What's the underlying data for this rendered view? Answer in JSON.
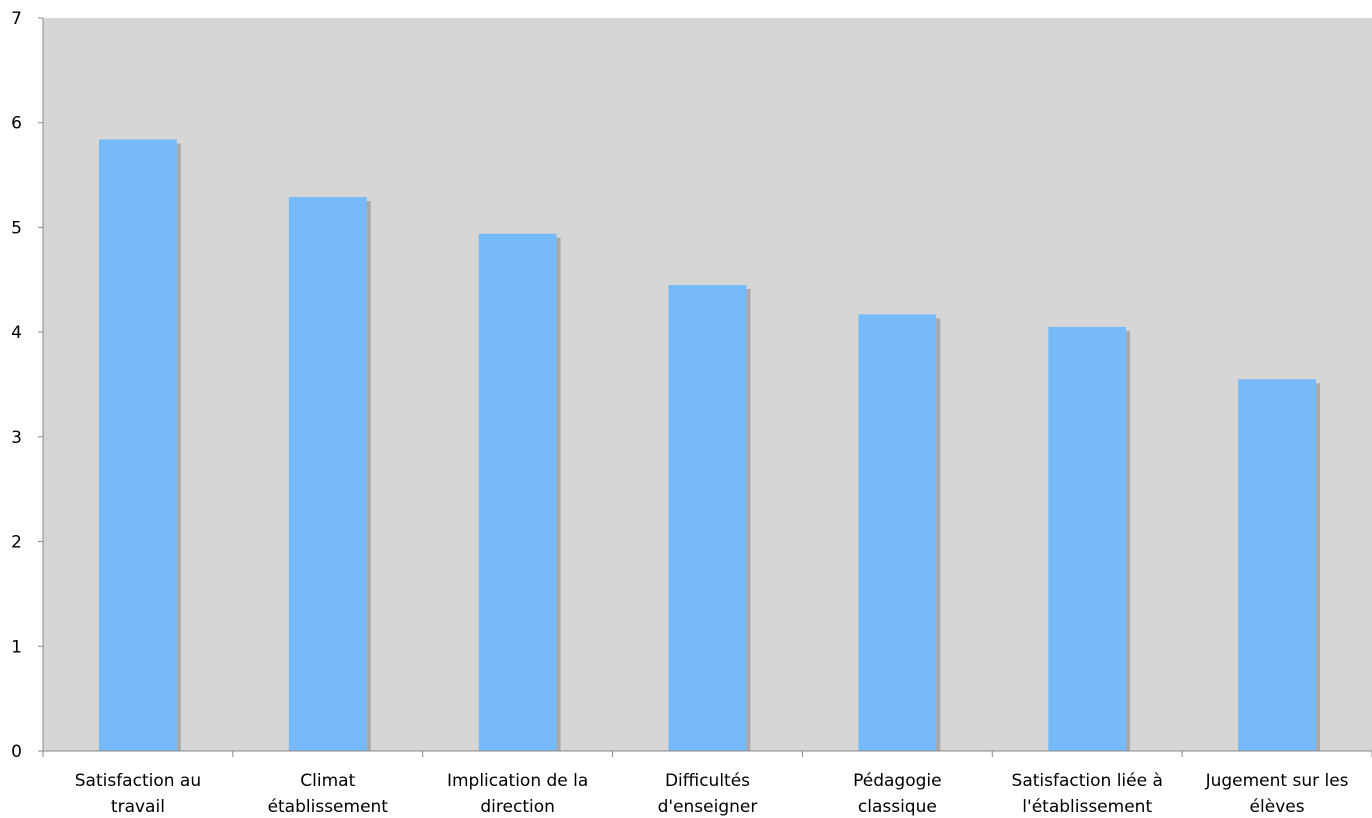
{
  "chart_data": {
    "type": "bar",
    "categories": [
      [
        "Satisfaction au",
        "travail"
      ],
      [
        "Climat",
        "établissement"
      ],
      [
        "Implication de la",
        "direction"
      ],
      [
        "Difficultés",
        "d'enseigner"
      ],
      [
        "Pédagogie",
        "classique"
      ],
      [
        "Satisfaction liée à",
        "l'établissement"
      ],
      [
        "Jugement sur les",
        "élèves"
      ]
    ],
    "values": [
      5.84,
      5.29,
      4.94,
      4.45,
      4.17,
      4.05,
      3.55
    ],
    "title": "",
    "xlabel": "",
    "ylabel": "",
    "ylim": [
      0,
      7
    ],
    "yticks": [
      "0",
      "1",
      "2",
      "3",
      "4",
      "5",
      "6",
      "7"
    ],
    "grid": false,
    "legend": "none",
    "colors": {
      "bar": "#77baf9",
      "bar_shadow": "#a9a9a9",
      "plot_background": "#d6d6d6",
      "axis": "#888888"
    }
  }
}
